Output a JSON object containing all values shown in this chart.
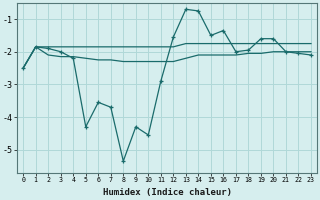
{
  "title": "",
  "xlabel": "Humidex (Indice chaleur)",
  "background_color": "#d6eeee",
  "grid_color": "#b0d8d8",
  "line_color": "#1a6b6b",
  "x_values": [
    0,
    1,
    2,
    3,
    4,
    5,
    6,
    7,
    8,
    9,
    10,
    11,
    12,
    13,
    14,
    15,
    16,
    17,
    18,
    19,
    20,
    21,
    22,
    23
  ],
  "line1": [
    -2.5,
    -1.85,
    -1.9,
    -2.0,
    -2.2,
    -4.3,
    -3.55,
    -3.7,
    -5.35,
    -4.3,
    -4.55,
    -2.9,
    -1.55,
    -0.7,
    -0.75,
    -1.5,
    -1.35,
    -2.0,
    -1.95,
    -1.6,
    -1.6,
    -2.0,
    -2.05,
    -2.1
  ],
  "line2": [
    -2.5,
    -1.85,
    -1.85,
    -1.85,
    -1.85,
    -1.85,
    -1.85,
    -1.85,
    -1.85,
    -1.85,
    -1.85,
    -1.85,
    -1.85,
    -1.75,
    -1.75,
    -1.75,
    -1.75,
    -1.75,
    -1.75,
    -1.75,
    -1.75,
    -1.75,
    -1.75,
    -1.75
  ],
  "line3": [
    -2.5,
    -1.85,
    -2.1,
    -2.15,
    -2.15,
    -2.2,
    -2.25,
    -2.25,
    -2.3,
    -2.3,
    -2.3,
    -2.3,
    -2.3,
    -2.2,
    -2.1,
    -2.1,
    -2.1,
    -2.1,
    -2.05,
    -2.05,
    -2.0,
    -2.0,
    -2.0,
    -2.0
  ],
  "ylim": [
    -5.7,
    -0.5
  ],
  "xlim": [
    -0.5,
    23.5
  ],
  "yticks": [
    -5,
    -4,
    -3,
    -2,
    -1
  ],
  "xticks": [
    0,
    1,
    2,
    3,
    4,
    5,
    6,
    7,
    8,
    9,
    10,
    11,
    12,
    13,
    14,
    15,
    16,
    17,
    18,
    19,
    20,
    21,
    22,
    23
  ]
}
